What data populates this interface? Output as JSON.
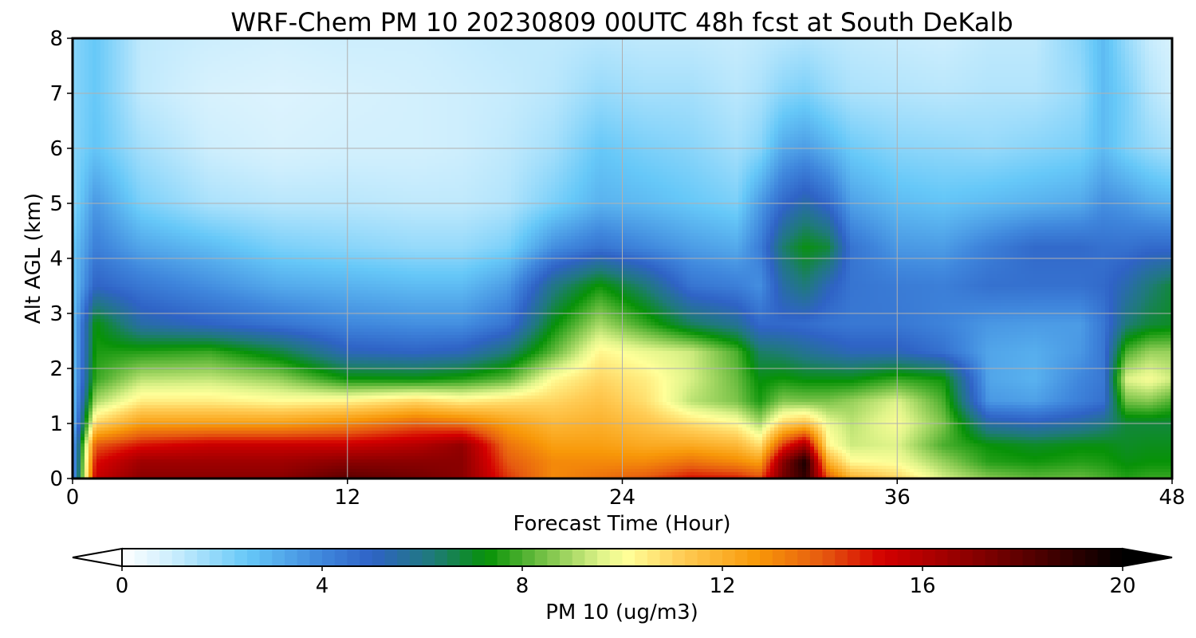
{
  "chart_data": {
    "type": "heatmap",
    "title": "WRF-Chem PM 10  20230809 00UTC 48h fcst at South DeKalb",
    "xlabel": "Forecast Time (Hour)",
    "ylabel": "Alt AGL (km)",
    "colorbar_label": "PM 10  (ug/m3)",
    "xlim": [
      0,
      48
    ],
    "ylim": [
      0,
      8
    ],
    "xticks": [
      "0",
      "12",
      "24",
      "36",
      "48"
    ],
    "yticks": [
      "0",
      "1",
      "2",
      "3",
      "4",
      "5",
      "6",
      "7",
      "8"
    ],
    "colorbar_ticks": [
      "0",
      "4",
      "8",
      "12",
      "16",
      "20"
    ],
    "colorbar_range": [
      0,
      20
    ],
    "grid": true,
    "colorbar_extend": "both",
    "colormap_stops": [
      {
        "v": 0,
        "c": "#ffffff"
      },
      {
        "v": 1,
        "c": "#cdeefd"
      },
      {
        "v": 2.5,
        "c": "#66c8f8"
      },
      {
        "v": 4,
        "c": "#3f86dc"
      },
      {
        "v": 5,
        "c": "#2f63c6"
      },
      {
        "v": 6.2,
        "c": "#1f7a7a"
      },
      {
        "v": 7.3,
        "c": "#079207"
      },
      {
        "v": 8.5,
        "c": "#7cc44a"
      },
      {
        "v": 9.6,
        "c": "#e0f48a"
      },
      {
        "v": 10.1,
        "c": "#ffff99"
      },
      {
        "v": 11.2,
        "c": "#ffcc55"
      },
      {
        "v": 12.7,
        "c": "#f89808"
      },
      {
        "v": 14,
        "c": "#e65a10"
      },
      {
        "v": 15.2,
        "c": "#d40000"
      },
      {
        "v": 17,
        "c": "#8a0000"
      },
      {
        "v": 20,
        "c": "#000000"
      }
    ],
    "alt_levels_km": [
      0,
      0.3,
      0.6,
      1,
      1.4,
      1.8,
      2.3,
      2.8,
      3.5,
      4.2,
      5,
      6,
      7,
      8
    ],
    "series": [
      {
        "hour": 0,
        "pm10": [
          3,
          3,
          3,
          2.5,
          2.5,
          2.5,
          2.5,
          2.5,
          2.5,
          2.5,
          2,
          2,
          2,
          2
        ]
      },
      {
        "hour": 1,
        "pm10": [
          15.5,
          15,
          14,
          11,
          9,
          7.8,
          7.5,
          7.3,
          5,
          4.2,
          3.6,
          2.6,
          2.5,
          2.5
        ]
      },
      {
        "hour": 3,
        "pm10": [
          17,
          16.5,
          15,
          12.5,
          10.5,
          9.2,
          7.6,
          5.5,
          4.4,
          3.3,
          2.2,
          1.6,
          1.2,
          1.2
        ]
      },
      {
        "hour": 6,
        "pm10": [
          17,
          16.5,
          15.5,
          12.5,
          10.5,
          9.3,
          7.8,
          5,
          3.8,
          2.8,
          1.5,
          1,
          0.8,
          1
        ]
      },
      {
        "hour": 9,
        "pm10": [
          17,
          16.5,
          15.5,
          12.5,
          10.2,
          8.8,
          6.8,
          4.5,
          3.2,
          2.2,
          1.3,
          0.8,
          0.7,
          0.9
        ]
      },
      {
        "hour": 12,
        "pm10": [
          18,
          17,
          15.5,
          13,
          10.4,
          7.4,
          5.2,
          4,
          3,
          2,
          1.3,
          0.9,
          0.8,
          1
        ]
      },
      {
        "hour": 15,
        "pm10": [
          17.5,
          17,
          16,
          13.8,
          11,
          7.3,
          5,
          3.8,
          2.8,
          1.8,
          1.2,
          0.9,
          0.9,
          1
        ]
      },
      {
        "hour": 17,
        "pm10": [
          17,
          17,
          16.8,
          13.5,
          10.5,
          7.6,
          5.2,
          3.8,
          2.8,
          1.8,
          1.2,
          1,
          1,
          1.1
        ]
      },
      {
        "hour": 19,
        "pm10": [
          14.5,
          14,
          13.5,
          12.5,
          10.8,
          8.2,
          6.2,
          4.5,
          3.5,
          2.2,
          1.4,
          1.2,
          1.1,
          1.2
        ]
      },
      {
        "hour": 21,
        "pm10": [
          13,
          13,
          12.5,
          11.8,
          11,
          10.2,
          8.2,
          7.2,
          6,
          3.8,
          2.2,
          1.6,
          1.3,
          1.2
        ]
      },
      {
        "hour": 23,
        "pm10": [
          13.5,
          13,
          12.5,
          12,
          11.5,
          11,
          10.3,
          9,
          7.4,
          4.5,
          3,
          2.5,
          1.8,
          1.3
        ]
      },
      {
        "hour": 25,
        "pm10": [
          14,
          13,
          12.2,
          11.5,
          10.8,
          10.5,
          9.8,
          7.8,
          6.2,
          4,
          2.8,
          2.2,
          1.6,
          1.2
        ]
      },
      {
        "hour": 27,
        "pm10": [
          15,
          13.5,
          12.2,
          10.8,
          9.2,
          9.5,
          9.4,
          6.5,
          4.5,
          3.5,
          2.5,
          2,
          1.6,
          1.2
        ]
      },
      {
        "hour": 29,
        "pm10": [
          14.8,
          13,
          11.8,
          10.2,
          8.5,
          8.3,
          8,
          5.8,
          4.2,
          3.2,
          2.2,
          1.6,
          1.3,
          1.1
        ]
      },
      {
        "hour": 30,
        "pm10": [
          14.2,
          12.5,
          10.8,
          9,
          7.5,
          7.2,
          6.4,
          4.8,
          3.8,
          4.2,
          3.5,
          2,
          1.5,
          1.2
        ]
      },
      {
        "hour": 31,
        "pm10": [
          17.5,
          17,
          14.5,
          11,
          8.6,
          7.4,
          6.2,
          4.8,
          5.5,
          6.3,
          4.8,
          3.2,
          2,
          1.3
        ]
      },
      {
        "hour": 32,
        "pm10": [
          19,
          19.5,
          16.5,
          11.5,
          8.5,
          7.2,
          5.8,
          4.7,
          6.2,
          7.2,
          5.5,
          3.5,
          2.2,
          1.4
        ]
      },
      {
        "hour": 33,
        "pm10": [
          14,
          12,
          10.3,
          9.8,
          8.5,
          7.2,
          5.5,
          4.5,
          5.2,
          6.8,
          4.8,
          3,
          1.8,
          1.3
        ]
      },
      {
        "hour": 34,
        "pm10": [
          12,
          10.2,
          9.4,
          9.2,
          8.8,
          7.2,
          5.2,
          4.4,
          4.5,
          4.5,
          3.4,
          2.4,
          1.5,
          1.2
        ]
      },
      {
        "hour": 36,
        "pm10": [
          11,
          10,
          9.6,
          10,
          9.6,
          7.8,
          5.2,
          4.4,
          4.3,
          3.6,
          2.8,
          2,
          1.4,
          1.1
        ]
      },
      {
        "hour": 38,
        "pm10": [
          9.5,
          8.8,
          8,
          8.5,
          8,
          7.4,
          4.6,
          4.1,
          4.2,
          3.5,
          2.6,
          1.9,
          1.3,
          1
        ]
      },
      {
        "hour": 40,
        "pm10": [
          8.6,
          7.6,
          7.3,
          5.5,
          3.6,
          3.3,
          3.3,
          3.6,
          4.6,
          4.2,
          2.8,
          1.8,
          1.4,
          1.2
        ]
      },
      {
        "hour": 42,
        "pm10": [
          8.2,
          7.4,
          7,
          5.2,
          3.4,
          3,
          3.1,
          3.5,
          4.6,
          4.8,
          3,
          2,
          1.4,
          1.2
        ]
      },
      {
        "hour": 44,
        "pm10": [
          8.3,
          7.6,
          7.2,
          5.6,
          4.2,
          4,
          3.6,
          3.5,
          4.6,
          4.8,
          3.2,
          2.2,
          1.8,
          2
        ]
      },
      {
        "hour": 45,
        "pm10": [
          8,
          7.5,
          7.2,
          6,
          4.6,
          4.4,
          4.4,
          4.4,
          4.8,
          4.6,
          3.8,
          2.8,
          2.8,
          2.8
        ]
      },
      {
        "hour": 46,
        "pm10": [
          7.6,
          7.2,
          7,
          6.8,
          8.4,
          9.6,
          8,
          6.2,
          5.4,
          4.6,
          3.6,
          2.2,
          2.2,
          1.8
        ]
      },
      {
        "hour": 47,
        "pm10": [
          7.8,
          7.3,
          7.1,
          6.8,
          8.6,
          10,
          8.8,
          6.8,
          6.2,
          4.8,
          3.2,
          1.8,
          1.4,
          1.1
        ]
      },
      {
        "hour": 48,
        "pm10": [
          7.8,
          7.3,
          7.1,
          6.8,
          8,
          9.4,
          8.8,
          7,
          6.8,
          4.8,
          3,
          1.5,
          1,
          0.8
        ]
      }
    ]
  }
}
